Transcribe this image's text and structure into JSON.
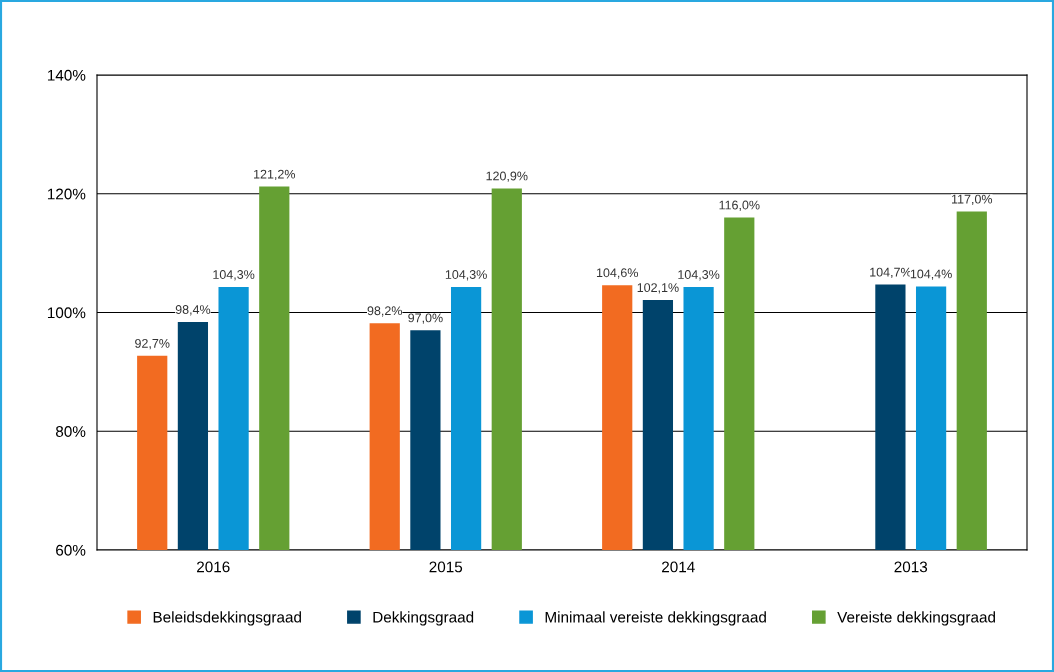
{
  "chart_data": {
    "type": "bar",
    "categories": [
      "2016",
      "2015",
      "2014",
      "2013"
    ],
    "series": [
      {
        "name": "Beleidsdekkingsgraad",
        "color": "#f26b21",
        "values": [
          92.7,
          98.2,
          104.6,
          null
        ],
        "value_labels": [
          "92,7%",
          "98,2%",
          "104,6%",
          null
        ]
      },
      {
        "name": "Dekkingsgraad",
        "color": "#00436b",
        "values": [
          98.4,
          97.0,
          102.1,
          104.7
        ],
        "value_labels": [
          "98,4%",
          "97,0%",
          "102,1%",
          "104,7%"
        ]
      },
      {
        "name": "Minimaal vereiste dekkingsgraad",
        "color": "#0a96d6",
        "values": [
          104.3,
          104.3,
          104.3,
          104.4
        ],
        "value_labels": [
          "104,3%",
          "104,3%",
          "104,3%",
          "104,4%"
        ]
      },
      {
        "name": "Vereiste dekkingsgraad",
        "color": "#65a033",
        "values": [
          121.2,
          120.9,
          116.0,
          117.0
        ],
        "value_labels": [
          "121,2%",
          "120,9%",
          "116,0%",
          "117,0%"
        ]
      }
    ],
    "ylim": [
      60,
      140
    ],
    "yticks": [
      {
        "value": 60,
        "label": "60%"
      },
      {
        "value": 80,
        "label": "80%"
      },
      {
        "value": 100,
        "label": "100%"
      },
      {
        "value": 120,
        "label": "120%"
      },
      {
        "value": 140,
        "label": "140%"
      }
    ],
    "grid": "y",
    "legend": "bottom"
  }
}
